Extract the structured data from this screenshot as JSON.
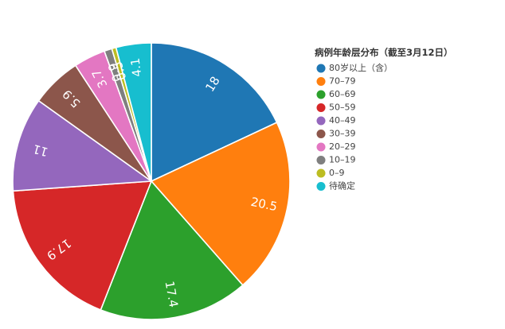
{
  "chart_data": {
    "type": "pie",
    "legend_title": "病例年龄层分布（截至3月12日）",
    "legend_position": "right",
    "start_angle": "12 o'clock",
    "direction": "clockwise",
    "slices": [
      {
        "label": "80岁以上（含）",
        "value": 18,
        "value_label": "18",
        "color": "#1f77b4"
      },
      {
        "label": "70–79",
        "value": 20.5,
        "value_label": "20.5",
        "color": "#ff7f0e"
      },
      {
        "label": "60–69",
        "value": 17.4,
        "value_label": "17.4",
        "color": "#2ca02c"
      },
      {
        "label": "50–59",
        "value": 17.9,
        "value_label": "17.9",
        "color": "#d62728"
      },
      {
        "label": "40–49",
        "value": 11,
        "value_label": "11",
        "color": "#9467bd"
      },
      {
        "label": "30–39",
        "value": 5.9,
        "value_label": "5.9",
        "color": "#8c564b"
      },
      {
        "label": "20–29",
        "value": 3.7,
        "value_label": "3.7",
        "color": "#e377c2"
      },
      {
        "label": "10–19",
        "value": 0.9,
        "value_label": "0.9",
        "color": "#7f7f7f"
      },
      {
        "label": "0–9",
        "value": 0.5,
        "value_label": "0.5",
        "color": "#bcbd22"
      },
      {
        "label": "待确定",
        "value": 4.1,
        "value_label": "4.1",
        "color": "#17becf"
      }
    ]
  }
}
